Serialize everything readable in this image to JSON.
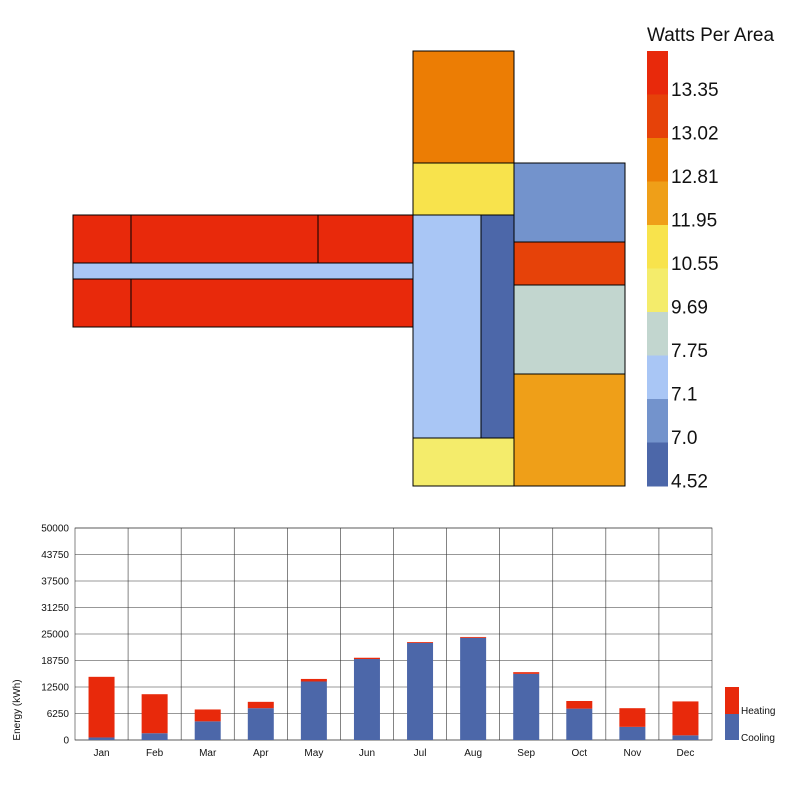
{
  "heatmap": {
    "legend_title": "Watts Per Area",
    "scale": [
      {
        "label": "13.35",
        "color": "#e8290b"
      },
      {
        "label": "",
        "color": "#e64209"
      },
      {
        "label": "13.02",
        "color": "#e65c05"
      },
      {
        "label": "",
        "color": "#ec7d04"
      },
      {
        "label": "12.81",
        "color": "#ef9f18"
      },
      {
        "label": "",
        "color": "#f2c12d"
      },
      {
        "label": "11.95",
        "color": "#f8e34c"
      },
      {
        "label": "",
        "color": "#f4ec6b"
      },
      {
        "label": "10.55",
        "color": "#c2d6cf"
      },
      {
        "label": "",
        "color": "#a9c6f5"
      },
      {
        "label": "9.69",
        "color": "#8ba9dd"
      },
      {
        "label": "",
        "color": "#7393cc"
      },
      {
        "label": "7.75",
        "color": "#5872b3"
      },
      {
        "label": "7.1",
        "color": "#4c67a9"
      },
      {
        "label": "7.0",
        "color": "#4c67a9"
      },
      {
        "label": "4.52",
        "color": "#4c67a9"
      }
    ],
    "zones": [
      {
        "color": "#e8290b"
      },
      {
        "color": "#e8290b"
      },
      {
        "color": "#e8290b"
      },
      {
        "color": "#a9c6f5"
      },
      {
        "color": "#e8290b"
      },
      {
        "color": "#e8290b"
      },
      {
        "color": "#ec7d04"
      },
      {
        "color": "#f8e34c"
      },
      {
        "color": "#7393cc"
      },
      {
        "color": "#a9c6f5"
      },
      {
        "color": "#4c67a9"
      },
      {
        "color": "#e64209"
      },
      {
        "color": "#c2d6cf"
      },
      {
        "color": "#ef9f18"
      },
      {
        "color": "#f4ec6b"
      }
    ]
  },
  "chart_data": {
    "type": "bar",
    "stacked": true,
    "categories": [
      "Jan",
      "Feb",
      "Mar",
      "Apr",
      "May",
      "Jun",
      "Jul",
      "Aug",
      "Sep",
      "Oct",
      "Nov",
      "Dec"
    ],
    "series": [
      {
        "name": "Cooling",
        "color": "#4c67a9",
        "values": [
          600,
          1600,
          4400,
          7500,
          13800,
          19100,
          22900,
          24100,
          15600,
          7400,
          3100,
          1100
        ]
      },
      {
        "name": "Heating",
        "color": "#e8290b",
        "values": [
          14300,
          9200,
          2800,
          1500,
          600,
          300,
          200,
          200,
          400,
          1800,
          4400,
          8000
        ]
      }
    ],
    "ylabel": "Energy (kWh)",
    "ylim": [
      0,
      50000
    ],
    "yticks": [
      "0",
      "6250",
      "12500",
      "18750",
      "25000",
      "31250",
      "37500",
      "43750",
      "50000"
    ],
    "grid": true,
    "legend": "right"
  }
}
